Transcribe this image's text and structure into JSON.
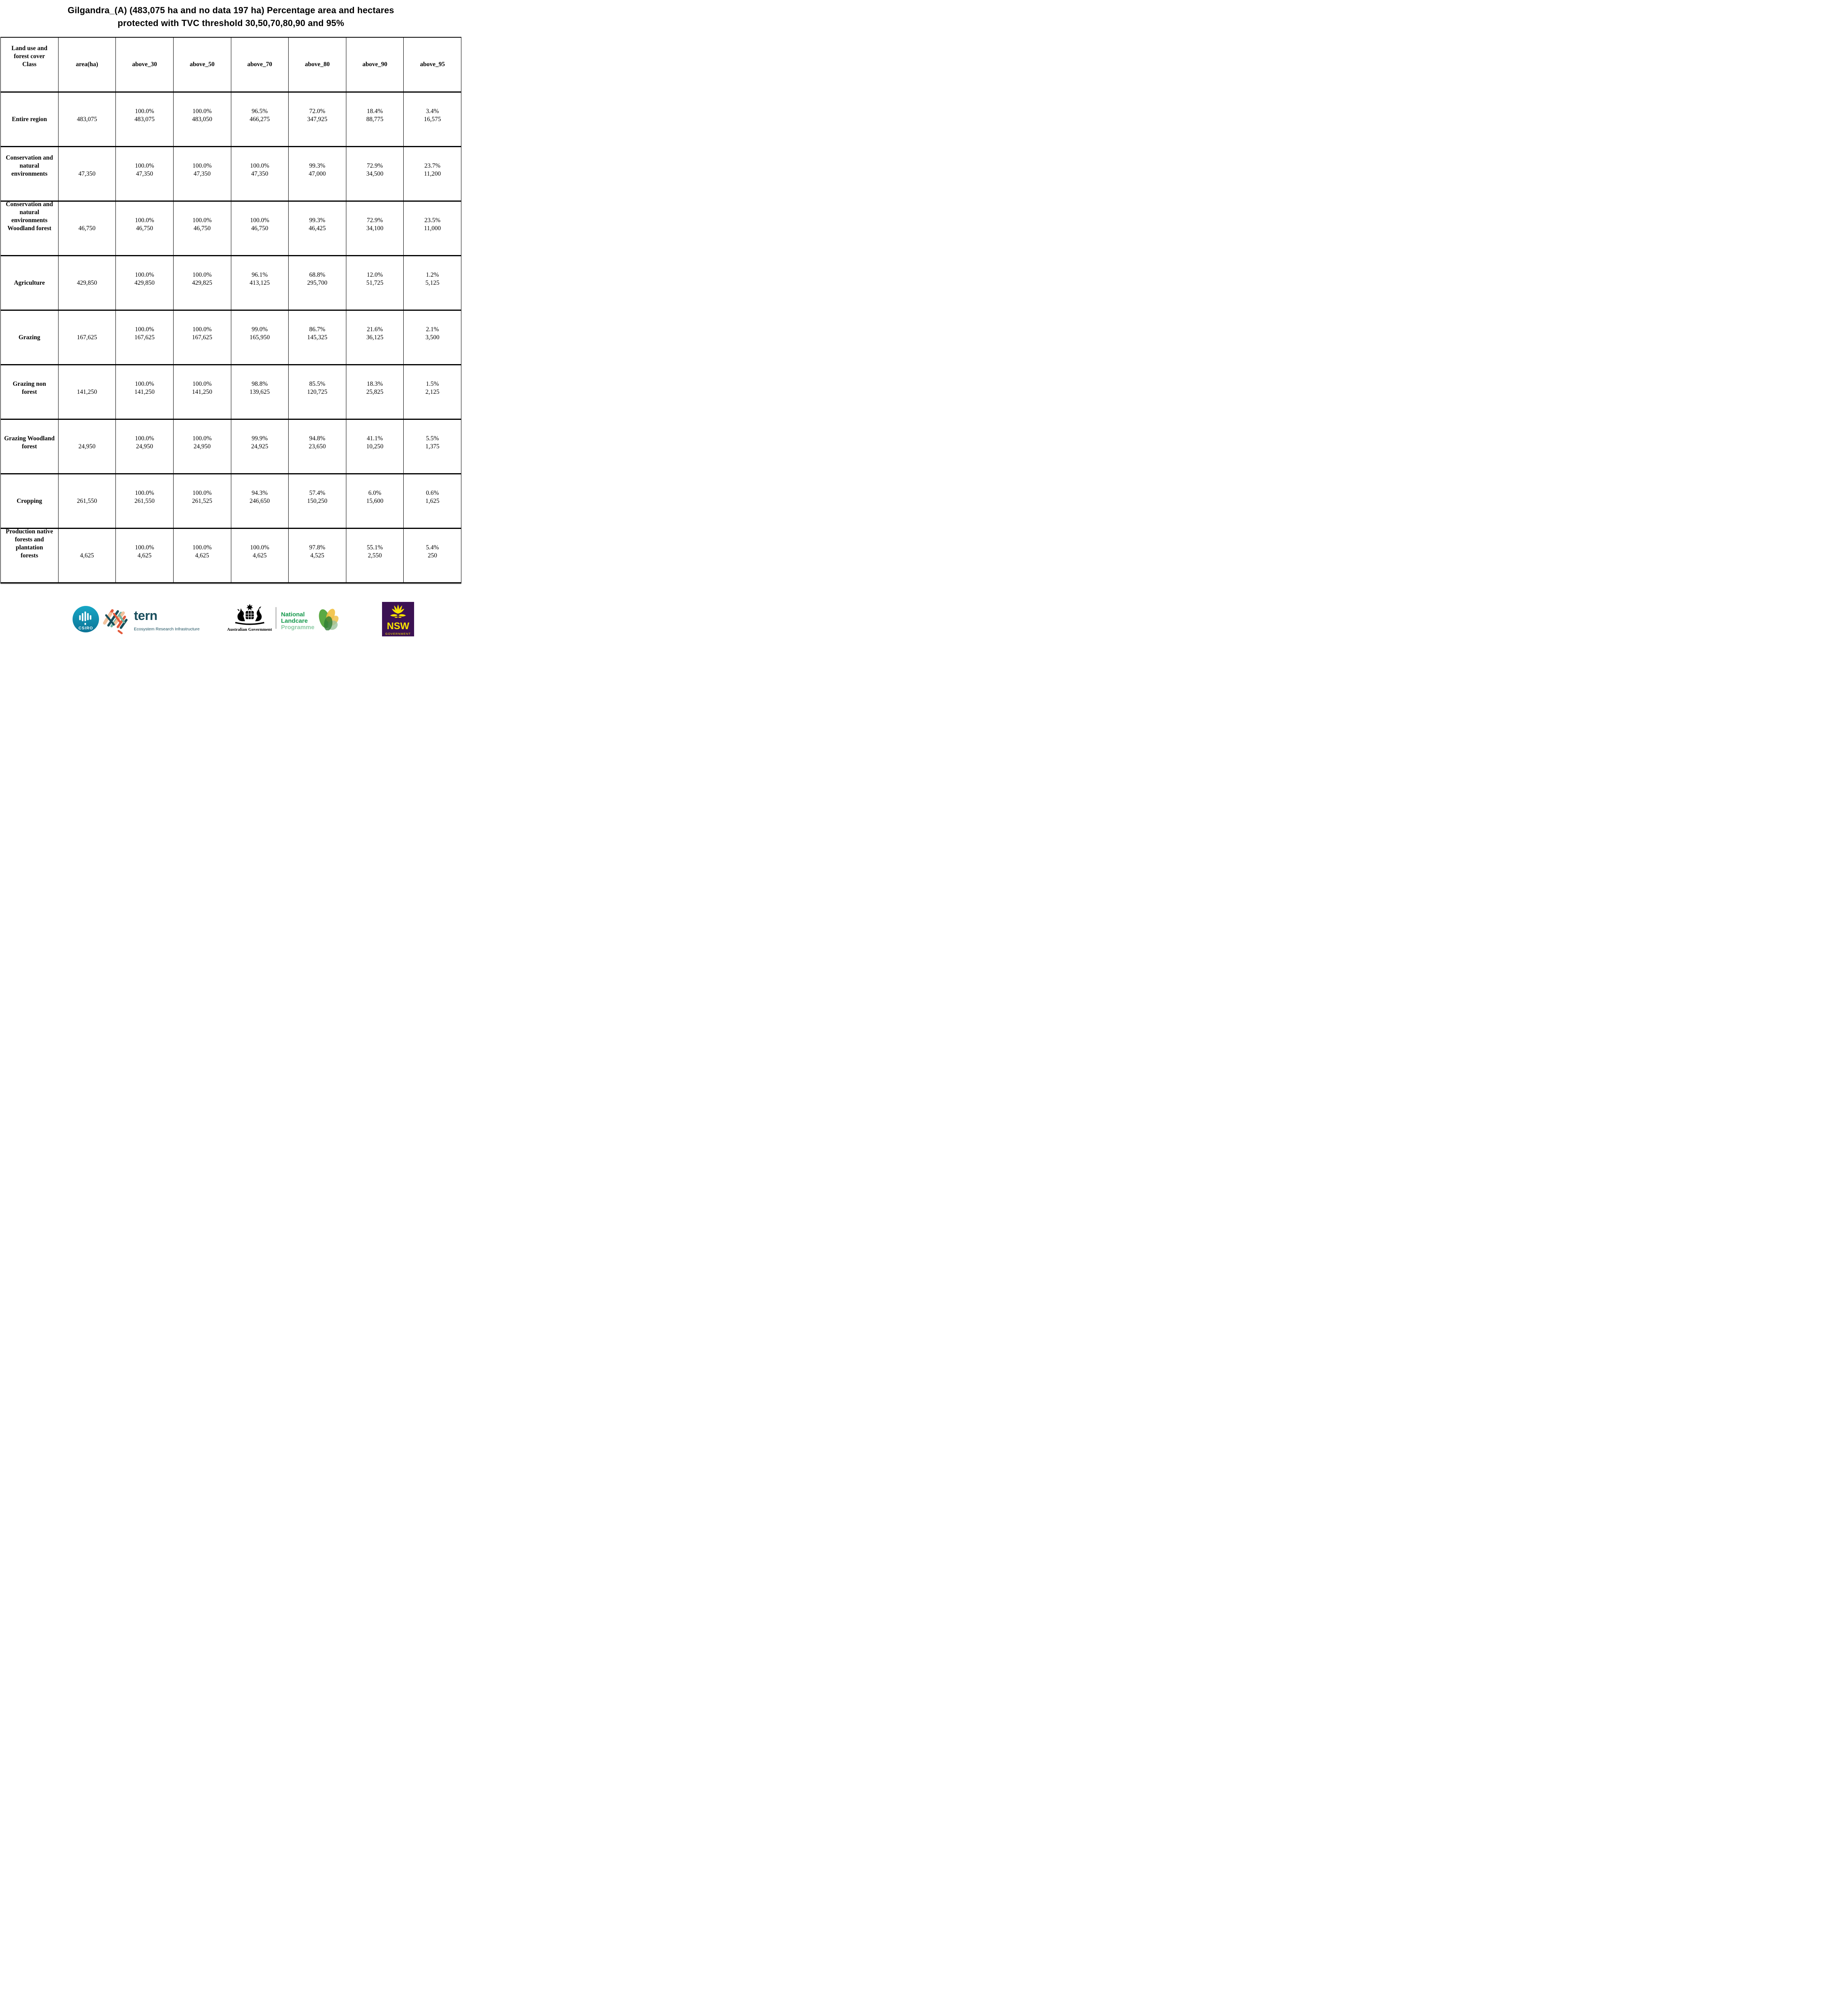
{
  "title": "Gilgandra_(A) (483,075 ha and no data 197 ha) Percentage area and hectares protected with TVC threshold 30,50,70,80,90 and 95%",
  "table": {
    "columns": [
      "Land use and\nforest cover\nClass",
      "area(ha)",
      "above_30",
      "above_50",
      "above_70",
      "above_80",
      "above_90",
      "above_95"
    ],
    "rows": [
      {
        "label": "Entire region",
        "area": "483,075",
        "cells": [
          [
            "100.0%",
            "483,075"
          ],
          [
            "100.0%",
            "483,050"
          ],
          [
            "96.5%",
            "466,275"
          ],
          [
            "72.0%",
            "347,925"
          ],
          [
            "18.4%",
            "88,775"
          ],
          [
            "3.4%",
            "16,575"
          ]
        ]
      },
      {
        "label": "Conservation and\nnatural\nenvironments",
        "area": "47,350",
        "cells": [
          [
            "100.0%",
            "47,350"
          ],
          [
            "100.0%",
            "47,350"
          ],
          [
            "100.0%",
            "47,350"
          ],
          [
            "99.3%",
            "47,000"
          ],
          [
            "72.9%",
            "34,500"
          ],
          [
            "23.7%",
            "11,200"
          ]
        ]
      },
      {
        "label": "Conservation and\nnatural\nenvironments\nWoodland forest",
        "area": "46,750",
        "cells": [
          [
            "100.0%",
            "46,750"
          ],
          [
            "100.0%",
            "46,750"
          ],
          [
            "100.0%",
            "46,750"
          ],
          [
            "99.3%",
            "46,425"
          ],
          [
            "72.9%",
            "34,100"
          ],
          [
            "23.5%",
            "11,000"
          ]
        ]
      },
      {
        "label": "Agriculture",
        "area": "429,850",
        "cells": [
          [
            "100.0%",
            "429,850"
          ],
          [
            "100.0%",
            "429,825"
          ],
          [
            "96.1%",
            "413,125"
          ],
          [
            "68.8%",
            "295,700"
          ],
          [
            "12.0%",
            "51,725"
          ],
          [
            "1.2%",
            "5,125"
          ]
        ]
      },
      {
        "label": "Grazing",
        "area": "167,625",
        "cells": [
          [
            "100.0%",
            "167,625"
          ],
          [
            "100.0%",
            "167,625"
          ],
          [
            "99.0%",
            "165,950"
          ],
          [
            "86.7%",
            "145,325"
          ],
          [
            "21.6%",
            "36,125"
          ],
          [
            "2.1%",
            "3,500"
          ]
        ]
      },
      {
        "label": "Grazing non\nforest",
        "area": "141,250",
        "cells": [
          [
            "100.0%",
            "141,250"
          ],
          [
            "100.0%",
            "141,250"
          ],
          [
            "98.8%",
            "139,625"
          ],
          [
            "85.5%",
            "120,725"
          ],
          [
            "18.3%",
            "25,825"
          ],
          [
            "1.5%",
            "2,125"
          ]
        ]
      },
      {
        "label": "Grazing Woodland\nforest",
        "area": "24,950",
        "cells": [
          [
            "100.0%",
            "24,950"
          ],
          [
            "100.0%",
            "24,950"
          ],
          [
            "99.9%",
            "24,925"
          ],
          [
            "94.8%",
            "23,650"
          ],
          [
            "41.1%",
            "10,250"
          ],
          [
            "5.5%",
            "1,375"
          ]
        ]
      },
      {
        "label": "Cropping",
        "area": "261,550",
        "cells": [
          [
            "100.0%",
            "261,550"
          ],
          [
            "100.0%",
            "261,525"
          ],
          [
            "94.3%",
            "246,650"
          ],
          [
            "57.4%",
            "150,250"
          ],
          [
            "6.0%",
            "15,600"
          ],
          [
            "0.6%",
            "1,625"
          ]
        ]
      },
      {
        "label": "Production native\nforests and\nplantation\nforests",
        "area": "4,625",
        "cells": [
          [
            "100.0%",
            "4,625"
          ],
          [
            "100.0%",
            "4,625"
          ],
          [
            "100.0%",
            "4,625"
          ],
          [
            "97.8%",
            "4,525"
          ],
          [
            "55.1%",
            "2,550"
          ],
          [
            "5.4%",
            "250"
          ]
        ]
      }
    ]
  },
  "footer": {
    "csiro": {
      "label": "CSIRO",
      "color_top": "#17a7c6",
      "color_bottom": "#0c7496"
    },
    "tern": {
      "name": "tern",
      "subtitle": "Ecosystem Research Infrastructure",
      "color": "#1a4e5d"
    },
    "australian_government": {
      "label": "Australian Government"
    },
    "landcare": {
      "line1": "National",
      "line2": "Landcare",
      "line3": "Programme",
      "green": "#14984b",
      "light_green": "#8ccaa4"
    },
    "nsw": {
      "name": "NSW",
      "subtitle": "GOVERNMENT",
      "purple": "#3c1253",
      "yellow": "#f9e300"
    }
  }
}
